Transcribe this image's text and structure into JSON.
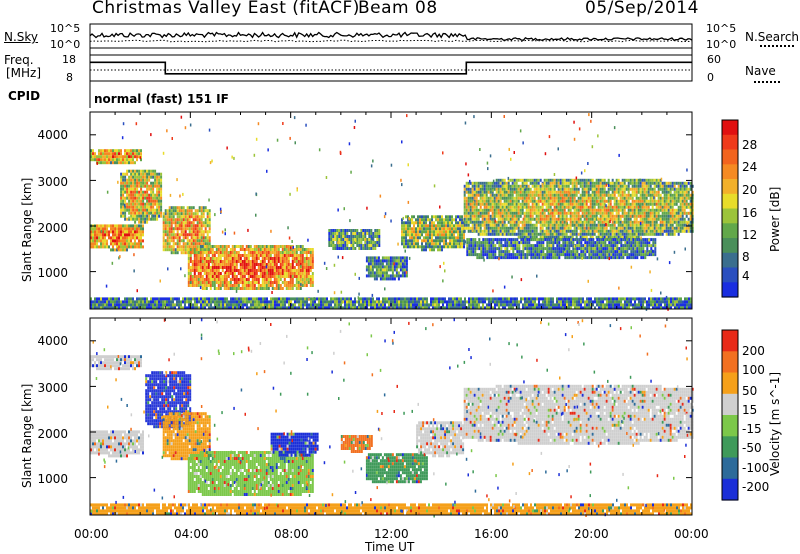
{
  "header": {
    "station": "Christmas Valley East (fitACF)",
    "beam": "Beam 08",
    "date": "05/Sep/2014"
  },
  "top_panels": {
    "nsky_label": "N.Sky",
    "nsky_ticks": [
      "10^5",
      "10^0"
    ],
    "nsearch_label": "N.Search",
    "nsearch_ticks": [
      "10^5",
      "10^0"
    ],
    "freq_label_1": "Freq.",
    "freq_label_2": "[MHz]",
    "freq_ticks": [
      "18",
      "8"
    ],
    "nave_label": "Nave",
    "nave_ticks": [
      "60",
      "0"
    ],
    "cpid_label": "CPID",
    "cpid_value": "normal (fast) 151 IF"
  },
  "chart_data": [
    {
      "type": "heatmap",
      "name": "power",
      "ylabel": "Slant Range [km]",
      "xlabel": "Time UT",
      "x_ticks": [
        "00:00",
        "04:00",
        "08:00",
        "12:00",
        "16:00",
        "20:00",
        "00:00"
      ],
      "y_ticks": [
        1000,
        2000,
        3000,
        4000
      ],
      "ylim": [
        180,
        4500
      ],
      "xlim_hours": [
        0,
        24
      ],
      "colorbar_label": "Power [dB]",
      "colorbar_ticks": [
        "28",
        "24",
        "20",
        "16",
        "12",
        "8",
        "4"
      ],
      "colorbar_colors": [
        "#1a2ee0",
        "#2a4fbf",
        "#3a6e8e",
        "#4a8f5a",
        "#62a84a",
        "#9cc43a",
        "#e8dc2a",
        "#f2b02a",
        "#f58a22",
        "#f2641e",
        "#ef3a1a",
        "#e01010"
      ],
      "echo_regions": [
        {
          "t0": 0.0,
          "t1": 2.1,
          "r0": 1500,
          "r1": 2100,
          "level": 0.85
        },
        {
          "t0": 0.0,
          "t1": 2.0,
          "r0": 3400,
          "r1": 3750,
          "level": 0.8
        },
        {
          "t0": 1.2,
          "t1": 2.8,
          "r0": 2100,
          "r1": 3300,
          "level": 0.7
        },
        {
          "t0": 2.9,
          "t1": 4.8,
          "r0": 1400,
          "r1": 2500,
          "level": 0.75
        },
        {
          "t0": 3.9,
          "t1": 8.9,
          "r0": 600,
          "r1": 1650,
          "level": 0.9
        },
        {
          "t0": 9.5,
          "t1": 11.5,
          "r0": 1500,
          "r1": 2000,
          "level": 0.4
        },
        {
          "t0": 11.0,
          "t1": 12.6,
          "r0": 850,
          "r1": 1400,
          "level": 0.35
        },
        {
          "t0": 12.4,
          "t1": 14.9,
          "r0": 1500,
          "r1": 2300,
          "level": 0.55
        },
        {
          "t0": 14.9,
          "t1": 24.0,
          "r0": 1750,
          "r1": 3100,
          "level": 0.6
        },
        {
          "t0": 15.0,
          "t1": 22.5,
          "r0": 1300,
          "r1": 1800,
          "level": 0.3
        },
        {
          "t0": 0.0,
          "t1": 24.0,
          "r0": 180,
          "r1": 500,
          "level": 0.3
        }
      ]
    },
    {
      "type": "heatmap",
      "name": "velocity",
      "ylabel": "Slant Range [km]",
      "xlabel": "Time UT",
      "x_ticks": [
        "00:00",
        "04:00",
        "08:00",
        "12:00",
        "16:00",
        "20:00",
        "00:00"
      ],
      "y_ticks": [
        1000,
        2000,
        3000,
        4000
      ],
      "ylim": [
        180,
        4500
      ],
      "xlim_hours": [
        0,
        24
      ],
      "colorbar_label": "Velocity [m s^-1]",
      "colorbar_ticks": [
        "200",
        "100",
        "50",
        "15",
        "-15",
        "-50",
        "-100",
        "-200"
      ],
      "colorbar_colors": [
        "#1b2fd8",
        "#2d6b9a",
        "#3f9a5a",
        "#7cc84a",
        "#cfcfcf",
        "#f5a01a",
        "#f27020",
        "#e82a18"
      ],
      "echo_regions": [
        {
          "t0": 0.0,
          "t1": 2.1,
          "r0": 1500,
          "r1": 2100,
          "color": "#cfcfcf"
        },
        {
          "t0": 0.0,
          "t1": 2.0,
          "r0": 3400,
          "r1": 3750,
          "color": "#cfcfcf"
        },
        {
          "t0": 2.2,
          "t1": 4.0,
          "r0": 2100,
          "r1": 3400,
          "color": "#2a3ad8"
        },
        {
          "t0": 2.9,
          "t1": 4.8,
          "r0": 1400,
          "r1": 2500,
          "color": "#f5a01a"
        },
        {
          "t0": 3.9,
          "t1": 8.9,
          "r0": 600,
          "r1": 1650,
          "color": "#7cc84a"
        },
        {
          "t0": 7.2,
          "t1": 9.1,
          "r0": 1500,
          "r1": 2050,
          "color": "#1b2fd8"
        },
        {
          "t0": 10.0,
          "t1": 11.2,
          "r0": 1600,
          "r1": 2000,
          "color": "#f27020"
        },
        {
          "t0": 11.0,
          "t1": 13.4,
          "r0": 900,
          "r1": 1600,
          "color": "#3f9a5a"
        },
        {
          "t0": 13.0,
          "t1": 14.9,
          "r0": 1500,
          "r1": 2300,
          "color": "#cfcfcf"
        },
        {
          "t0": 14.9,
          "t1": 24.0,
          "r0": 1750,
          "r1": 3100,
          "color": "#cfcfcf"
        },
        {
          "t0": 0.0,
          "t1": 24.0,
          "r0": 180,
          "r1": 500,
          "color": "#f5a01a"
        }
      ]
    }
  ],
  "line_panels": {
    "nsky_level": 0.55,
    "freq_segments": [
      {
        "t0": 0.0,
        "t1": 3.0,
        "mhz": 15.8
      },
      {
        "t0": 3.0,
        "t1": 15.0,
        "mhz": 11.0
      },
      {
        "t0": 15.0,
        "t1": 24.0,
        "mhz": 15.8
      }
    ],
    "nave_level": 0.35
  }
}
